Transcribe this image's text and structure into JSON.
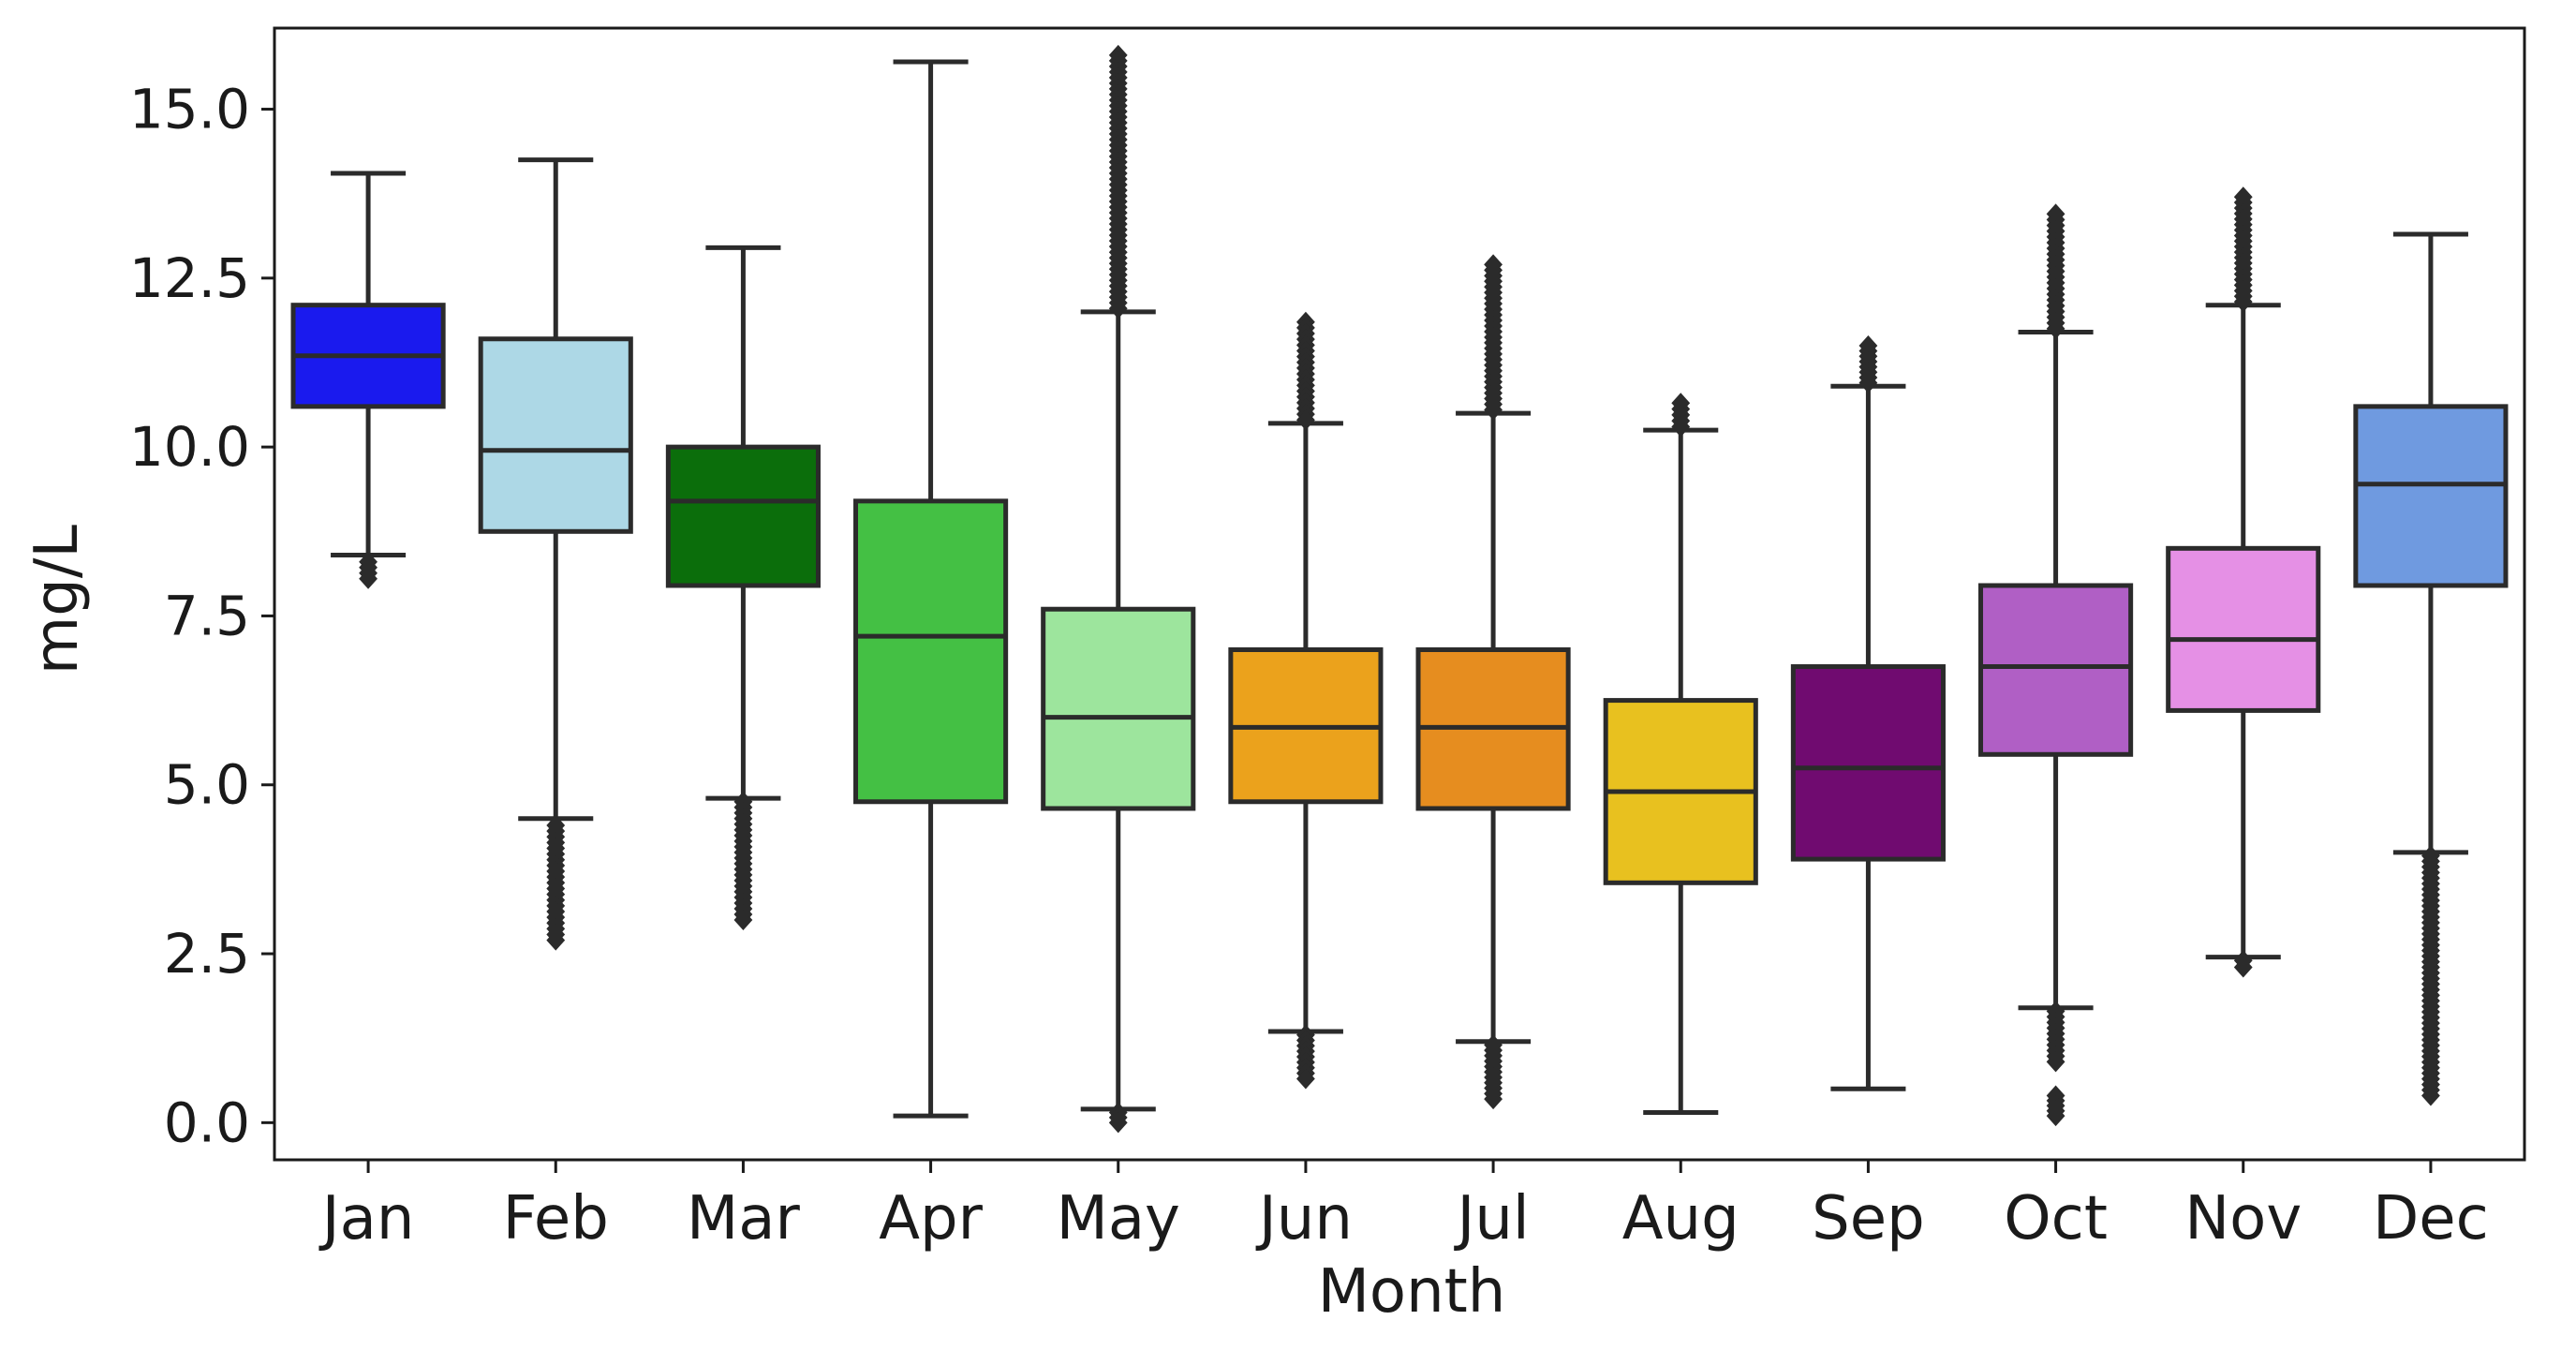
{
  "chart_data": {
    "type": "box",
    "title": "",
    "xlabel": "Month",
    "ylabel": "mg/L",
    "ylim": [
      -0.55,
      16.2
    ],
    "yticks": [
      0.0,
      2.5,
      5.0,
      7.5,
      10.0,
      12.5,
      15.0
    ],
    "ytick_labels": [
      "0.0",
      "2.5",
      "5.0",
      "7.5",
      "10.0",
      "12.5",
      "15.0"
    ],
    "grid": false,
    "categories": [
      "Jan",
      "Feb",
      "Mar",
      "Apr",
      "May",
      "Jun",
      "Jul",
      "Aug",
      "Sep",
      "Oct",
      "Nov",
      "Dec"
    ],
    "boxes": [
      {
        "month": "Jan",
        "whisker_low": 8.4,
        "q1": 10.6,
        "median": 11.35,
        "q3": 12.1,
        "whisker_high": 14.05,
        "color": "#1a1aee",
        "outliers": [
          {
            "from": 8.05,
            "to": 8.3
          }
        ]
      },
      {
        "month": "Feb",
        "whisker_low": 4.5,
        "q1": 8.75,
        "median": 9.95,
        "q3": 11.6,
        "whisker_high": 14.25,
        "color": "#add8e6",
        "outliers": [
          {
            "from": 2.7,
            "to": 4.4
          }
        ]
      },
      {
        "month": "Mar",
        "whisker_low": 4.8,
        "q1": 7.95,
        "median": 9.2,
        "q3": 10.0,
        "whisker_high": 12.95,
        "color": "#0b6e0b",
        "outliers": [
          {
            "from": 3.0,
            "to": 4.75
          }
        ]
      },
      {
        "month": "Apr",
        "whisker_low": 0.1,
        "q1": 4.75,
        "median": 7.2,
        "q3": 9.2,
        "whisker_high": 15.7,
        "color": "#44c044",
        "outliers": []
      },
      {
        "month": "May",
        "whisker_low": 0.2,
        "q1": 4.65,
        "median": 6.0,
        "q3": 7.6,
        "whisker_high": 12.0,
        "color": "#9de59d",
        "outliers": [
          {
            "from": 12.05,
            "to": 15.8
          },
          {
            "from": 0.0,
            "to": 0.15
          }
        ]
      },
      {
        "month": "Jun",
        "whisker_low": 1.35,
        "q1": 4.75,
        "median": 5.85,
        "q3": 7.0,
        "whisker_high": 10.35,
        "color": "#eba21c",
        "outliers": [
          {
            "from": 10.4,
            "to": 11.85
          },
          {
            "from": 0.65,
            "to": 1.3
          }
        ]
      },
      {
        "month": "Jul",
        "whisker_low": 1.2,
        "q1": 4.65,
        "median": 5.85,
        "q3": 7.0,
        "whisker_high": 10.5,
        "color": "#e68d1f",
        "outliers": [
          {
            "from": 10.55,
            "to": 12.7
          },
          {
            "from": 0.35,
            "to": 1.15
          }
        ]
      },
      {
        "month": "Aug",
        "whisker_low": 0.15,
        "q1": 3.55,
        "median": 4.9,
        "q3": 6.25,
        "whisker_high": 10.25,
        "color": "#e8c11f",
        "outliers": [
          {
            "from": 10.3,
            "to": 10.65
          }
        ]
      },
      {
        "month": "Sep",
        "whisker_low": 0.5,
        "q1": 3.9,
        "median": 5.25,
        "q3": 6.75,
        "whisker_high": 10.9,
        "color": "#700b70",
        "outliers": [
          {
            "from": 10.95,
            "to": 11.5
          }
        ]
      },
      {
        "month": "Oct",
        "whisker_low": 1.7,
        "q1": 5.45,
        "median": 6.75,
        "q3": 7.95,
        "whisker_high": 11.7,
        "color": "#b05fc5",
        "outliers": [
          {
            "from": 11.75,
            "to": 13.45
          },
          {
            "from": 0.9,
            "to": 1.65
          },
          {
            "from": 0.1,
            "to": 0.4
          }
        ]
      },
      {
        "month": "Nov",
        "whisker_low": 2.45,
        "q1": 6.1,
        "median": 7.15,
        "q3": 8.5,
        "whisker_high": 12.1,
        "color": "#e590e5",
        "outliers": [
          {
            "from": 12.15,
            "to": 13.7
          },
          {
            "from": 2.3,
            "to": 2.4
          }
        ]
      },
      {
        "month": "Dec",
        "whisker_low": 4.0,
        "q1": 7.95,
        "median": 9.45,
        "q3": 10.6,
        "whisker_high": 13.15,
        "color": "#6f9ae0",
        "outliers": [
          {
            "from": 0.4,
            "to": 3.95
          }
        ]
      }
    ]
  }
}
